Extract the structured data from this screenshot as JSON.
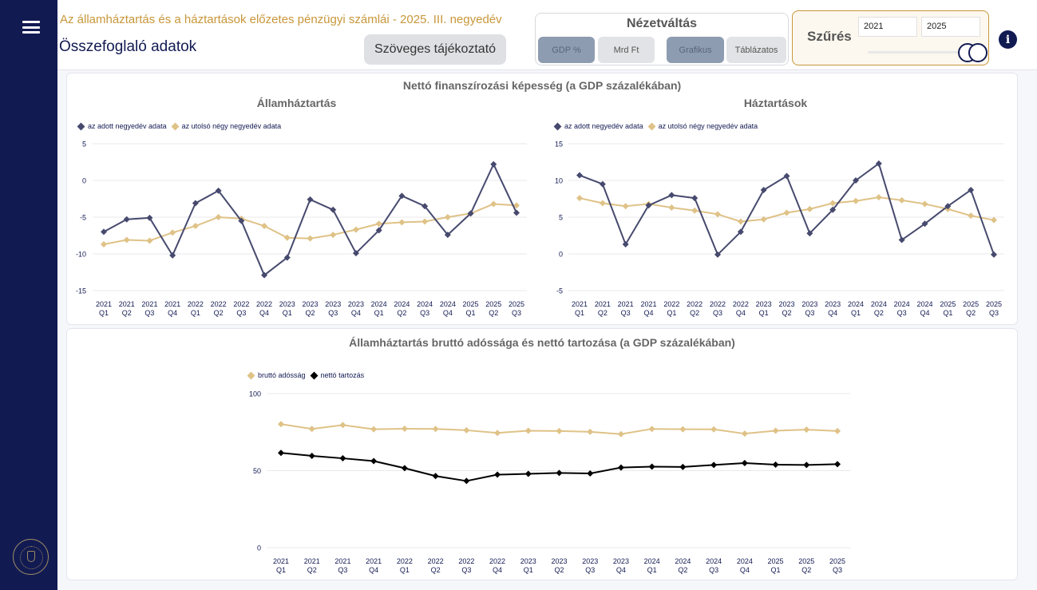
{
  "header": {
    "subtitle": "Az államháztartás és a háztartások előzetes pénzügyi számlái - 2025. III. negyedév",
    "title": "Összefoglaló adatok",
    "text_info_button": "Szöveges tájékoztató"
  },
  "view_switch": {
    "title": "Nézetváltás",
    "units": [
      {
        "label": "GDP %",
        "active": true
      },
      {
        "label": "Mrd Ft",
        "active": false
      }
    ],
    "modes": [
      {
        "label": "Grafikus",
        "active": true
      },
      {
        "label": "Táblázatos",
        "active": false
      }
    ]
  },
  "filter": {
    "title": "Szűrés",
    "from_year": "2021",
    "to_year": "2025",
    "range_min": 2021,
    "range_max": 2025
  },
  "colors": {
    "sidebar": "#121a52",
    "accent_gold": "#c8973a",
    "series_navy": "#474a6e",
    "series_gold": "#dfc287",
    "series_black": "#000000"
  },
  "chart_data": [
    {
      "type": "line",
      "title": "Nettó finanszírozási képesség (a GDP százalékában)",
      "subtitle": "Államháztartás",
      "x": [
        "2021 Q1",
        "2021 Q2",
        "2021 Q3",
        "2021 Q4",
        "2022 Q1",
        "2022 Q2",
        "2022 Q3",
        "2022 Q4",
        "2023 Q1",
        "2023 Q2",
        "2023 Q3",
        "2023 Q4",
        "2024 Q1",
        "2024 Q2",
        "2024 Q3",
        "2024 Q4",
        "2025 Q1",
        "2025 Q2",
        "2025 Q3"
      ],
      "ylim": [
        -15,
        5
      ],
      "yticks": [
        5,
        0,
        -5,
        -10,
        -15
      ],
      "grid": true,
      "legend": "top-left",
      "series": [
        {
          "name": "az adott negyedév adata",
          "color": "#474a6e",
          "values": [
            -7.0,
            -5.3,
            -5.1,
            -10.2,
            -3.1,
            -1.4,
            -5.5,
            -12.9,
            -10.5,
            -2.6,
            -4.0,
            -9.9,
            -6.8,
            -2.1,
            -3.5,
            -7.4,
            -4.5,
            2.2,
            -4.4
          ]
        },
        {
          "name": "az utolsó négy negyedév adata",
          "color": "#dfc287",
          "values": [
            -8.7,
            -8.1,
            -8.2,
            -7.1,
            -6.2,
            -5.0,
            -5.2,
            -6.2,
            -7.8,
            -7.9,
            -7.4,
            -6.7,
            -5.9,
            -5.7,
            -5.6,
            -5.0,
            -4.5,
            -3.2,
            -3.4
          ]
        }
      ]
    },
    {
      "type": "line",
      "title": "Nettó finanszírozási képesség (a GDP százalékában)",
      "subtitle": "Háztartások",
      "x": [
        "2021 Q1",
        "2021 Q2",
        "2021 Q3",
        "2021 Q4",
        "2022 Q1",
        "2022 Q2",
        "2022 Q3",
        "2022 Q4",
        "2023 Q1",
        "2023 Q2",
        "2023 Q3",
        "2023 Q4",
        "2024 Q1",
        "2024 Q2",
        "2024 Q3",
        "2024 Q4",
        "2025 Q1",
        "2025 Q2",
        "2025 Q3"
      ],
      "ylim": [
        -5,
        15
      ],
      "yticks": [
        15,
        10,
        5,
        0,
        -5
      ],
      "grid": true,
      "legend": "top-left",
      "series": [
        {
          "name": "az adott negyedév adata",
          "color": "#474a6e",
          "values": [
            10.7,
            9.5,
            1.3,
            6.6,
            8.0,
            7.6,
            -0.1,
            3.0,
            8.7,
            10.6,
            2.8,
            6.0,
            10.0,
            12.3,
            1.9,
            4.1,
            6.5,
            8.7,
            -0.1
          ]
        },
        {
          "name": "az utolsó négy negyedév adata",
          "color": "#dfc287",
          "values": [
            7.6,
            6.9,
            6.5,
            6.8,
            6.3,
            5.9,
            5.4,
            4.4,
            4.7,
            5.6,
            6.1,
            6.9,
            7.2,
            7.7,
            7.3,
            6.8,
            6.1,
            5.2,
            4.6
          ]
        }
      ]
    },
    {
      "type": "line",
      "title": "Államháztartás bruttó adóssága és nettó tartozása (a GDP százalékában)",
      "x": [
        "2021 Q1",
        "2021 Q2",
        "2021 Q3",
        "2021 Q4",
        "2022 Q1",
        "2022 Q2",
        "2022 Q3",
        "2022 Q4",
        "2023 Q1",
        "2023 Q2",
        "2023 Q3",
        "2023 Q4",
        "2024 Q1",
        "2024 Q2",
        "2024 Q3",
        "2024 Q4",
        "2025 Q1",
        "2025 Q2",
        "2025 Q3"
      ],
      "ylim": [
        0,
        100
      ],
      "yticks": [
        100,
        50,
        0
      ],
      "grid": true,
      "legend": "top-left",
      "series": [
        {
          "name": "bruttó adósság",
          "color": "#dfc287",
          "values": [
            80.2,
            77.1,
            79.6,
            76.9,
            77.2,
            77.1,
            76.2,
            74.5,
            75.9,
            75.7,
            75.2,
            73.7,
            77.1,
            76.9,
            76.8,
            74.0,
            75.9,
            76.6,
            75.7
          ]
        },
        {
          "name": "nettó tartozás",
          "color": "#000000",
          "values": [
            61.5,
            59.6,
            58.0,
            56.2,
            51.6,
            46.5,
            43.3,
            47.4,
            47.9,
            48.5,
            48.2,
            52.0,
            52.6,
            52.4,
            53.7,
            54.9,
            53.9,
            53.7,
            54.2
          ]
        }
      ]
    }
  ]
}
